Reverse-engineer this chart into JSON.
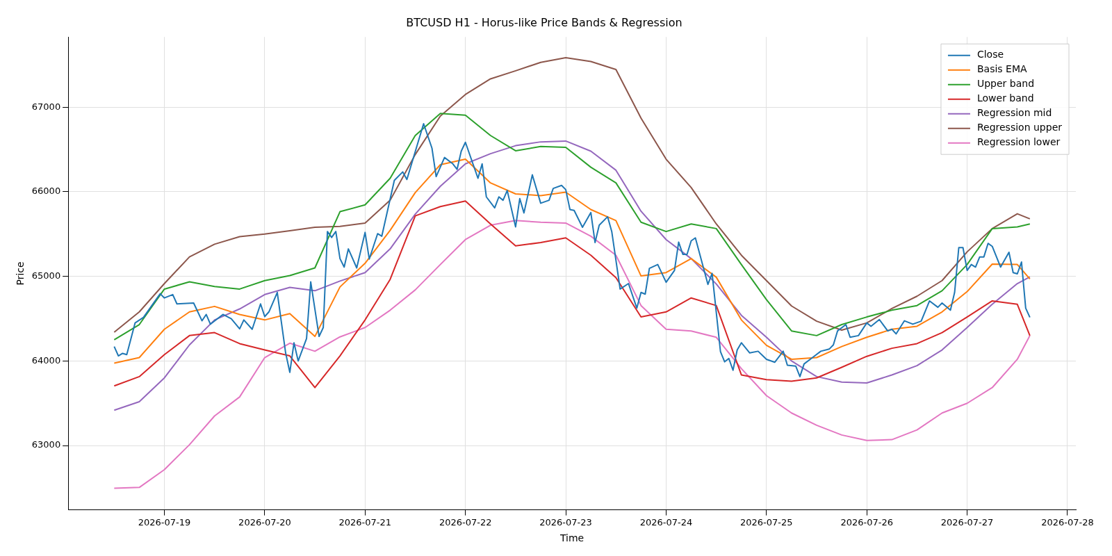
{
  "chart_data": {
    "type": "line",
    "title": "BTCUSD H1 - Horus-like Price Bands & Regression",
    "xlabel": "Time",
    "ylabel": "Price",
    "x": [
      "2026-07-18T12:00",
      "2026-07-18T18:00",
      "2026-07-19T00:00",
      "2026-07-19T06:00",
      "2026-07-19T12:00",
      "2026-07-19T18:00",
      "2026-07-20T00:00",
      "2026-07-20T06:00",
      "2026-07-20T12:00",
      "2026-07-20T18:00",
      "2026-07-21T00:00",
      "2026-07-21T06:00",
      "2026-07-21T12:00",
      "2026-07-21T18:00",
      "2026-07-22T00:00",
      "2026-07-22T06:00",
      "2026-07-22T12:00",
      "2026-07-22T18:00",
      "2026-07-23T00:00",
      "2026-07-23T06:00",
      "2026-07-23T12:00",
      "2026-07-23T18:00",
      "2026-07-24T00:00",
      "2026-07-24T06:00",
      "2026-07-24T12:00",
      "2026-07-24T18:00",
      "2026-07-25T00:00",
      "2026-07-25T06:00",
      "2026-07-25T12:00",
      "2026-07-25T18:00",
      "2026-07-26T00:00",
      "2026-07-26T06:00",
      "2026-07-26T12:00",
      "2026-07-26T18:00",
      "2026-07-27T00:00",
      "2026-07-27T06:00",
      "2026-07-27T12:00",
      "2026-07-27T15:00"
    ],
    "series": [
      {
        "name": "Close",
        "color": "#1f77b4",
        "x": [
          "2026-07-18T12:00",
          "2026-07-18T13:00",
          "2026-07-18T14:00",
          "2026-07-18T15:00",
          "2026-07-18T17:00",
          "2026-07-18T19:00",
          "2026-07-18T23:00",
          "2026-07-19T00:00",
          "2026-07-19T02:00",
          "2026-07-19T03:00",
          "2026-07-19T07:00",
          "2026-07-19T09:00",
          "2026-07-19T10:00",
          "2026-07-19T11:00",
          "2026-07-19T14:00",
          "2026-07-19T16:00",
          "2026-07-19T18:00",
          "2026-07-19T19:00",
          "2026-07-19T21:00",
          "2026-07-19T23:00",
          "2026-07-20T00:00",
          "2026-07-20T01:00",
          "2026-07-20T03:00",
          "2026-07-20T05:00",
          "2026-07-20T06:00",
          "2026-07-20T07:00",
          "2026-07-20T08:00",
          "2026-07-20T10:00",
          "2026-07-20T11:00",
          "2026-07-20T13:00",
          "2026-07-20T14:00",
          "2026-07-20T15:00",
          "2026-07-20T16:00",
          "2026-07-20T17:00",
          "2026-07-20T18:00",
          "2026-07-20T19:00",
          "2026-07-20T20:00",
          "2026-07-20T22:00",
          "2026-07-21T00:00",
          "2026-07-21T01:00",
          "2026-07-21T03:00",
          "2026-07-21T04:00",
          "2026-07-21T07:00",
          "2026-07-21T09:00",
          "2026-07-21T10:00",
          "2026-07-21T14:00",
          "2026-07-21T16:00",
          "2026-07-21T17:00",
          "2026-07-21T19:00",
          "2026-07-21T21:00",
          "2026-07-21T22:00",
          "2026-07-21T23:00",
          "2026-07-22T00:00",
          "2026-07-22T03:00",
          "2026-07-22T04:00",
          "2026-07-22T05:00",
          "2026-07-22T07:00",
          "2026-07-22T08:00",
          "2026-07-22T09:00",
          "2026-07-22T10:00",
          "2026-07-22T12:00",
          "2026-07-22T13:00",
          "2026-07-22T14:00",
          "2026-07-22T16:00",
          "2026-07-22T18:00",
          "2026-07-22T20:00",
          "2026-07-22T21:00",
          "2026-07-22T23:00",
          "2026-07-23T00:00",
          "2026-07-23T01:00",
          "2026-07-23T02:00",
          "2026-07-23T04:00",
          "2026-07-23T06:00",
          "2026-07-23T07:00",
          "2026-07-23T08:00",
          "2026-07-23T10:00",
          "2026-07-23T11:00",
          "2026-07-23T13:00",
          "2026-07-23T15:00",
          "2026-07-23T17:00",
          "2026-07-23T18:00",
          "2026-07-23T19:00",
          "2026-07-23T20:00",
          "2026-07-23T22:00",
          "2026-07-24T00:00",
          "2026-07-24T02:00",
          "2026-07-24T03:00",
          "2026-07-24T04:00",
          "2026-07-24T05:00",
          "2026-07-24T06:00",
          "2026-07-24T07:00",
          "2026-07-24T10:00",
          "2026-07-24T11:00",
          "2026-07-24T13:00",
          "2026-07-24T14:00",
          "2026-07-24T15:00",
          "2026-07-24T16:00",
          "2026-07-24T17:00",
          "2026-07-24T18:00",
          "2026-07-24T20:00",
          "2026-07-24T22:00",
          "2026-07-25T00:00",
          "2026-07-25T02:00",
          "2026-07-25T04:00",
          "2026-07-25T05:00",
          "2026-07-25T07:00",
          "2026-07-25T08:00",
          "2026-07-25T09:00",
          "2026-07-25T11:00",
          "2026-07-25T13:00",
          "2026-07-25T15:00",
          "2026-07-25T16:00",
          "2026-07-25T17:00",
          "2026-07-25T19:00",
          "2026-07-25T20:00",
          "2026-07-25T22:00",
          "2026-07-26T00:00",
          "2026-07-26T01:00",
          "2026-07-26T03:00",
          "2026-07-26T05:00",
          "2026-07-26T06:00",
          "2026-07-26T07:00",
          "2026-07-26T09:00",
          "2026-07-26T11:00",
          "2026-07-26T13:00",
          "2026-07-26T15:00",
          "2026-07-26T17:00",
          "2026-07-26T18:00",
          "2026-07-26T20:00",
          "2026-07-26T21:00",
          "2026-07-26T22:00",
          "2026-07-26T23:00",
          "2026-07-27T00:00",
          "2026-07-27T01:00",
          "2026-07-27T02:00",
          "2026-07-27T03:00",
          "2026-07-27T04:00",
          "2026-07-27T05:00",
          "2026-07-27T06:00",
          "2026-07-27T08:00",
          "2026-07-27T10:00",
          "2026-07-27T11:00",
          "2026-07-27T12:00",
          "2026-07-27T13:00",
          "2026-07-27T14:00",
          "2026-07-27T15:00"
        ],
        "values": [
          64170,
          64060,
          64090,
          64075,
          64450,
          64515,
          64795,
          64745,
          64785,
          64675,
          64685,
          64475,
          64550,
          64435,
          64550,
          64500,
          64380,
          64485,
          64375,
          64675,
          64525,
          64580,
          64810,
          64095,
          63865,
          64215,
          64000,
          64265,
          64935,
          64290,
          64395,
          65530,
          65460,
          65530,
          65210,
          65110,
          65325,
          65100,
          65520,
          65205,
          65505,
          65475,
          66135,
          66235,
          66145,
          66805,
          66515,
          66180,
          66405,
          66330,
          66265,
          66480,
          66585,
          66160,
          66330,
          65940,
          65810,
          65940,
          65900,
          66015,
          65585,
          65920,
          65750,
          66200,
          65865,
          65900,
          66040,
          66075,
          66025,
          65790,
          65780,
          65580,
          65755,
          65400,
          65605,
          65705,
          65530,
          64850,
          64915,
          64625,
          64810,
          64790,
          65095,
          65140,
          64930,
          65070,
          65405,
          65260,
          65260,
          65420,
          65455,
          64905,
          65035,
          64110,
          63990,
          64030,
          63890,
          64130,
          64215,
          64095,
          64115,
          64020,
          63985,
          64115,
          63950,
          63940,
          63815,
          63965,
          64040,
          64115,
          64140,
          64190,
          64355,
          64430,
          64280,
          64300,
          64450,
          64410,
          64490,
          64355,
          64375,
          64320,
          64475,
          64435,
          64470,
          64710,
          64635,
          64685,
          64600,
          64810,
          65340,
          65340,
          65070,
          65140,
          65110,
          65230,
          65230,
          65390,
          65355,
          65110,
          65285,
          65045,
          65030,
          65170,
          64625,
          64515
        ]
      },
      {
        "name": "Basis EMA",
        "color": "#ff7f0e",
        "values": [
          63975,
          64040,
          64375,
          64580,
          64645,
          64550,
          64485,
          64560,
          64290,
          64875,
          65155,
          65545,
          65990,
          66320,
          66385,
          66105,
          65975,
          65955,
          65995,
          65790,
          65660,
          65005,
          65045,
          65210,
          64990,
          64485,
          64185,
          64020,
          64040,
          64170,
          64280,
          64375,
          64410,
          64580,
          64820,
          65145,
          65140,
          64970
        ]
      },
      {
        "name": "Upper band",
        "color": "#2ca02c",
        "values": [
          64250,
          64430,
          64850,
          64935,
          64880,
          64850,
          64950,
          65010,
          65100,
          65765,
          65845,
          66160,
          66665,
          66925,
          66905,
          66665,
          66485,
          66535,
          66525,
          66290,
          66105,
          65640,
          65530,
          65620,
          65565,
          65140,
          64725,
          64355,
          64300,
          64430,
          64520,
          64600,
          64655,
          64830,
          65140,
          65565,
          65585,
          65620
        ]
      },
      {
        "name": "Lower band",
        "color": "#d62728",
        "values": [
          63705,
          63815,
          64075,
          64300,
          64335,
          64205,
          64130,
          64060,
          63685,
          64060,
          64485,
          64965,
          65715,
          65825,
          65890,
          65620,
          65360,
          65400,
          65455,
          65250,
          64985,
          64520,
          64580,
          64745,
          64655,
          63835,
          63780,
          63760,
          63800,
          63925,
          64055,
          64150,
          64205,
          64335,
          64520,
          64710,
          64670,
          64300
        ]
      },
      {
        "name": "Regression mid",
        "color": "#9467bd",
        "values": [
          63418,
          63518,
          63800,
          64190,
          64485,
          64615,
          64785,
          64870,
          64830,
          64945,
          65045,
          65325,
          65735,
          66065,
          66330,
          66450,
          66545,
          66590,
          66600,
          66480,
          66255,
          65770,
          65435,
          65210,
          64910,
          64540,
          64280,
          64000,
          63815,
          63750,
          63740,
          63835,
          63945,
          64130,
          64395,
          64670,
          64915,
          64995
        ]
      },
      {
        "name": "Regression upper",
        "color": "#8c564b",
        "values": [
          64340,
          64580,
          64915,
          65230,
          65380,
          65470,
          65500,
          65540,
          65580,
          65590,
          65630,
          65900,
          66440,
          66895,
          67150,
          67335,
          67430,
          67530,
          67585,
          67540,
          67445,
          66870,
          66385,
          66050,
          65620,
          65250,
          64950,
          64650,
          64470,
          64365,
          64450,
          64620,
          64765,
          64950,
          65290,
          65565,
          65740,
          65680
        ]
      },
      {
        "name": "Regression lower",
        "color": "#e377c2",
        "values": [
          62495,
          62505,
          62715,
          63010,
          63350,
          63575,
          64040,
          64210,
          64115,
          64285,
          64395,
          64600,
          64840,
          65140,
          65435,
          65605,
          65660,
          65640,
          65630,
          65475,
          65250,
          64655,
          64375,
          64355,
          64280,
          63910,
          63590,
          63385,
          63240,
          63125,
          63060,
          63070,
          63185,
          63385,
          63500,
          63685,
          64020,
          64300
        ]
      }
    ],
    "xlim": [
      "2026-07-18T01:00",
      "2026-07-28T02:00"
    ],
    "xticks": [
      {
        "value": "2026-07-19",
        "label": "2026-07-19"
      },
      {
        "value": "2026-07-20",
        "label": "2026-07-20"
      },
      {
        "value": "2026-07-21",
        "label": "2026-07-21"
      },
      {
        "value": "2026-07-22",
        "label": "2026-07-22"
      },
      {
        "value": "2026-07-23",
        "label": "2026-07-23"
      },
      {
        "value": "2026-07-24",
        "label": "2026-07-24"
      },
      {
        "value": "2026-07-25",
        "label": "2026-07-25"
      },
      {
        "value": "2026-07-26",
        "label": "2026-07-26"
      },
      {
        "value": "2026-07-27",
        "label": "2026-07-27"
      },
      {
        "value": "2026-07-28",
        "label": "2026-07-28"
      }
    ],
    "ylim": [
      62240,
      67830
    ],
    "yticks": [
      63000,
      64000,
      65000,
      66000,
      67000
    ],
    "grid": true,
    "legend": "top right",
    "marker": "none",
    "line_style": "solid"
  }
}
